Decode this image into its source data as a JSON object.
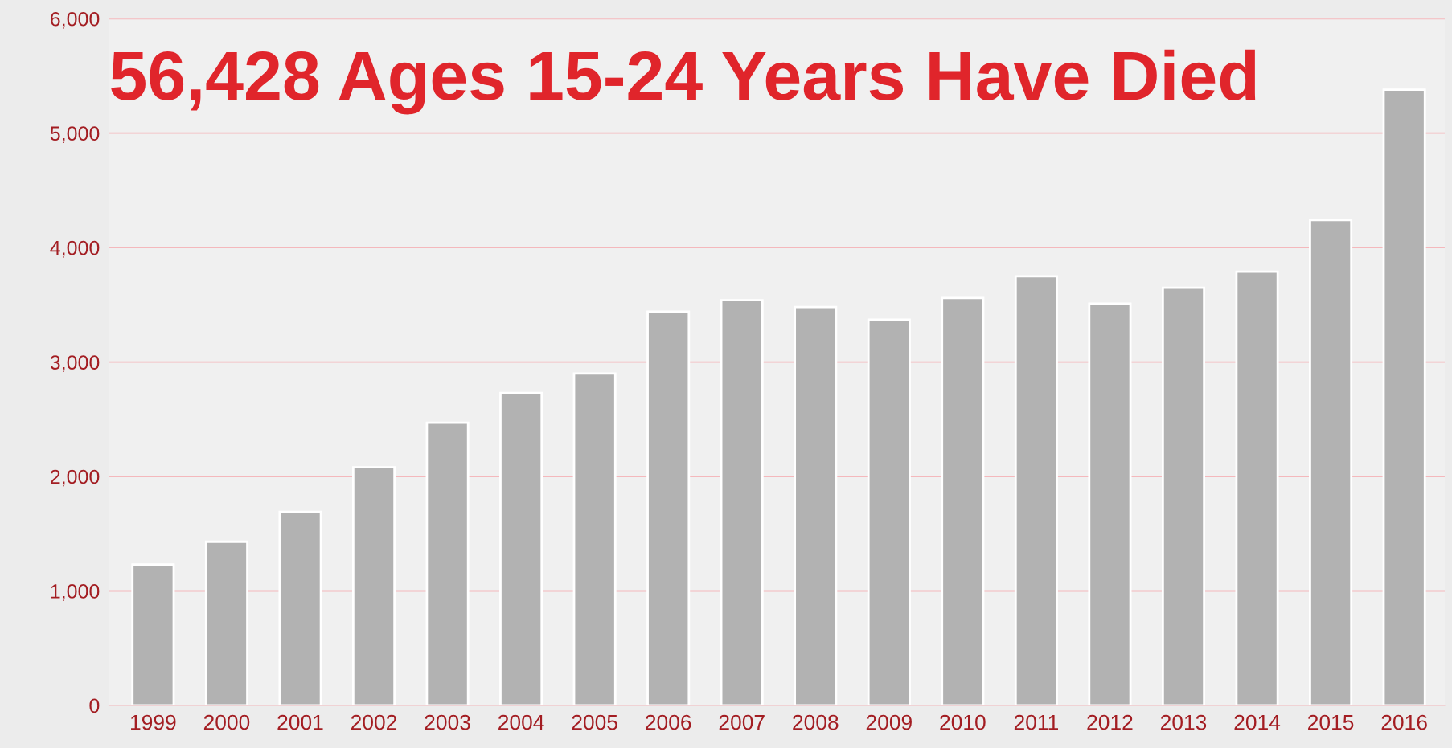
{
  "chart_data": {
    "type": "bar",
    "title": "56,428 Ages 15-24 Years Have Died",
    "categories": [
      "1999",
      "2000",
      "2001",
      "2002",
      "2003",
      "2004",
      "2005",
      "2006",
      "2007",
      "2008",
      "2009",
      "2010",
      "2011",
      "2012",
      "2013",
      "2014",
      "2015",
      "2016"
    ],
    "values": [
      1230,
      1430,
      1690,
      2080,
      2470,
      2730,
      2900,
      3440,
      3540,
      3480,
      3370,
      3560,
      3750,
      3510,
      3650,
      3790,
      4240,
      5380
    ],
    "color": "#b2b2b2",
    "ylim": [
      0,
      6000
    ],
    "yticks": [
      {
        "value": 0,
        "label": "0"
      },
      {
        "value": 1000,
        "label": "1,000"
      },
      {
        "value": 2000,
        "label": "2,000"
      },
      {
        "value": 3000,
        "label": "3,000"
      },
      {
        "value": 4000,
        "label": "4,000"
      },
      {
        "value": 5000,
        "label": "5,000"
      },
      {
        "value": 6000,
        "label": "6,000"
      }
    ],
    "grid": "y"
  }
}
